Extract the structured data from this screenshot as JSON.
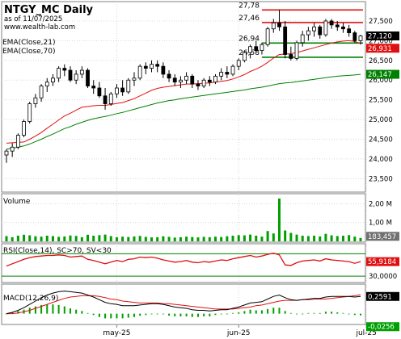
{
  "header": {
    "symbol": "NTGY_MC",
    "period": "Daily",
    "as_of": "as of 11/07/2025",
    "site": "www.wealth-lab.com"
  },
  "colors": {
    "up_candle": "#ffffff",
    "down_candle": "#000000",
    "ema21": "#e01010",
    "ema70": "#008000",
    "level_red": "#e01010",
    "level_green": "#008000",
    "volume": "#00a000",
    "rsi_line": "#e01010",
    "rsi_band": "#008000",
    "macd_line": "#000000",
    "signal_line": "#e01010",
    "hist": "#00a000",
    "price_tag": "#000000",
    "ema21_tag": "#e01010",
    "ema70_tag": "#008000"
  },
  "chart_data": [
    {
      "type": "candlestick",
      "title": "NTGY_MC Daily",
      "ylim": [
        23.2,
        27.95
      ],
      "yticks": [
        23.5,
        24.0,
        24.5,
        25.0,
        25.5,
        26.0,
        26.5,
        27.0,
        27.5
      ],
      "ytick_labels": [
        "23,500",
        "24,000",
        "24,500",
        "25,000",
        "25,500",
        "26,000",
        "26,500",
        "27,000",
        "27,500"
      ],
      "x_tick_labels": [
        {
          "index": 19,
          "label": "may-25"
        },
        {
          "index": 40,
          "label": "jun-25"
        },
        {
          "index": 62,
          "label": "jul-25"
        }
      ],
      "levels": [
        {
          "value": 27.78,
          "label": "27,78",
          "color": "red"
        },
        {
          "value": 27.46,
          "label": "27,46",
          "color": "red"
        },
        {
          "value": 26.94,
          "label": "26,94",
          "color": "green"
        },
        {
          "value": 26.58,
          "label": "26,58",
          "color": "green"
        }
      ],
      "indicators": [
        {
          "name": "EMA(Close,21)",
          "last": 26.931,
          "last_label": "26,931"
        },
        {
          "name": "EMA(Close,70)",
          "last": 26.147,
          "last_label": "26,147"
        }
      ],
      "last_close": 27.12,
      "last_close_label": "27,120",
      "ohlc": [
        [
          24.1,
          24.25,
          23.9,
          24.2
        ],
        [
          24.2,
          24.4,
          24.05,
          24.3
        ],
        [
          24.3,
          24.65,
          24.25,
          24.6
        ],
        [
          24.6,
          25.0,
          24.55,
          24.95
        ],
        [
          24.95,
          25.45,
          24.9,
          25.4
        ],
        [
          25.4,
          25.65,
          25.3,
          25.55
        ],
        [
          25.55,
          25.9,
          25.45,
          25.85
        ],
        [
          25.85,
          26.05,
          25.7,
          25.95
        ],
        [
          25.95,
          26.15,
          25.85,
          26.05
        ],
        [
          26.05,
          26.35,
          25.95,
          26.3
        ],
        [
          26.3,
          26.4,
          26.1,
          26.25
        ],
        [
          26.25,
          26.35,
          25.95,
          26.0
        ],
        [
          26.0,
          26.25,
          25.9,
          26.15
        ],
        [
          26.15,
          26.35,
          26.05,
          26.25
        ],
        [
          26.25,
          26.3,
          25.8,
          25.85
        ],
        [
          25.85,
          26.0,
          25.65,
          25.8
        ],
        [
          25.8,
          25.95,
          25.55,
          25.6
        ],
        [
          25.6,
          25.8,
          25.25,
          25.4
        ],
        [
          25.4,
          25.7,
          25.35,
          25.65
        ],
        [
          25.65,
          25.9,
          25.55,
          25.8
        ],
        [
          25.8,
          26.0,
          25.6,
          25.7
        ],
        [
          25.7,
          26.05,
          25.65,
          26.0
        ],
        [
          26.0,
          26.2,
          25.85,
          26.05
        ],
        [
          26.05,
          26.4,
          26.0,
          26.35
        ],
        [
          26.35,
          26.45,
          26.15,
          26.3
        ],
        [
          26.3,
          26.5,
          26.2,
          26.4
        ],
        [
          26.4,
          26.5,
          26.2,
          26.35
        ],
        [
          26.35,
          26.45,
          26.05,
          26.15
        ],
        [
          26.15,
          26.25,
          25.95,
          26.05
        ],
        [
          26.05,
          26.15,
          25.85,
          25.95
        ],
        [
          25.95,
          26.1,
          25.8,
          26.0
        ],
        [
          26.0,
          26.2,
          25.9,
          26.1
        ],
        [
          26.1,
          26.15,
          25.8,
          25.9
        ],
        [
          25.9,
          26.0,
          25.75,
          25.85
        ],
        [
          25.85,
          26.05,
          25.8,
          26.0
        ],
        [
          26.0,
          26.1,
          25.85,
          25.95
        ],
        [
          25.95,
          26.15,
          25.9,
          26.1
        ],
        [
          26.1,
          26.3,
          26.0,
          26.2
        ],
        [
          26.2,
          26.35,
          26.05,
          26.15
        ],
        [
          26.15,
          26.4,
          26.1,
          26.35
        ],
        [
          26.35,
          26.55,
          26.25,
          26.5
        ],
        [
          26.5,
          26.75,
          26.45,
          26.7
        ],
        [
          26.7,
          26.9,
          26.55,
          26.85
        ],
        [
          26.85,
          27.0,
          26.7,
          26.75
        ],
        [
          26.75,
          26.95,
          26.65,
          26.9
        ],
        [
          26.9,
          27.35,
          26.85,
          27.3
        ],
        [
          27.3,
          27.55,
          27.2,
          27.45
        ],
        [
          27.45,
          27.78,
          27.25,
          27.35
        ],
        [
          27.35,
          27.5,
          26.55,
          26.65
        ],
        [
          26.65,
          26.85,
          26.5,
          26.55
        ],
        [
          26.55,
          27.0,
          26.5,
          26.95
        ],
        [
          26.95,
          27.25,
          26.85,
          27.15
        ],
        [
          27.15,
          27.35,
          27.0,
          27.25
        ],
        [
          27.25,
          27.45,
          27.1,
          27.35
        ],
        [
          27.35,
          27.4,
          27.05,
          27.15
        ],
        [
          27.15,
          27.55,
          27.1,
          27.5
        ],
        [
          27.5,
          27.55,
          27.3,
          27.4
        ],
        [
          27.4,
          27.5,
          27.25,
          27.35
        ],
        [
          27.35,
          27.45,
          27.2,
          27.3
        ],
        [
          27.3,
          27.4,
          27.1,
          27.2
        ],
        [
          27.2,
          27.25,
          26.95,
          27.0
        ],
        [
          27.0,
          27.15,
          26.9,
          27.12
        ]
      ],
      "ema21": [
        24.4,
        24.41,
        24.42,
        24.43,
        24.5,
        24.58,
        24.67,
        24.78,
        24.88,
        24.99,
        25.09,
        25.16,
        25.24,
        25.31,
        25.33,
        25.35,
        25.36,
        25.36,
        25.38,
        25.41,
        25.43,
        25.48,
        25.53,
        25.6,
        25.67,
        25.74,
        25.79,
        25.82,
        25.84,
        25.86,
        25.88,
        25.9,
        25.9,
        25.91,
        25.92,
        25.93,
        25.95,
        25.97,
        25.99,
        26.03,
        26.08,
        26.14,
        26.22,
        26.28,
        26.35,
        26.45,
        26.56,
        26.65,
        26.66,
        26.67,
        26.7,
        26.74,
        26.78,
        26.82,
        26.86,
        26.9,
        26.94,
        26.97,
        26.99,
        27.0,
        26.98,
        26.931
      ],
      "ema70": [
        24.25,
        24.27,
        24.3,
        24.33,
        24.38,
        24.44,
        24.5,
        24.57,
        24.63,
        24.7,
        24.77,
        24.82,
        24.88,
        24.93,
        24.98,
        25.02,
        25.05,
        25.08,
        25.11,
        25.15,
        25.18,
        25.22,
        25.26,
        25.3,
        25.34,
        25.38,
        25.42,
        25.45,
        25.48,
        25.5,
        25.53,
        25.55,
        25.57,
        25.59,
        25.61,
        25.63,
        25.65,
        25.67,
        25.69,
        25.71,
        25.73,
        25.75,
        25.78,
        25.8,
        25.82,
        25.85,
        25.88,
        25.91,
        25.93,
        25.94,
        25.96,
        25.98,
        26.0,
        26.02,
        26.04,
        26.06,
        26.08,
        26.1,
        26.11,
        26.12,
        26.13,
        26.147
      ]
    },
    {
      "type": "bar",
      "title": "Volume",
      "ylim": [
        0,
        2.45
      ],
      "yticks": [
        1.0,
        2.0
      ],
      "ytick_labels": [
        "1,00 M",
        "2,00 M"
      ],
      "last_label": "183,457",
      "values_millions": [
        0.28,
        0.22,
        0.3,
        0.35,
        0.32,
        0.27,
        0.25,
        0.3,
        0.28,
        0.24,
        0.26,
        0.31,
        0.29,
        0.22,
        0.35,
        0.3,
        0.33,
        0.36,
        0.28,
        0.22,
        0.25,
        0.23,
        0.26,
        0.29,
        0.24,
        0.21,
        0.22,
        0.27,
        0.24,
        0.2,
        0.22,
        0.25,
        0.23,
        0.21,
        0.24,
        0.22,
        0.25,
        0.23,
        0.27,
        0.3,
        0.33,
        0.32,
        0.36,
        0.3,
        0.25,
        0.55,
        0.42,
        2.28,
        0.58,
        0.45,
        0.36,
        0.3,
        0.28,
        0.3,
        0.26,
        0.4,
        0.32,
        0.28,
        0.3,
        0.33,
        0.25,
        0.18
      ]
    },
    {
      "type": "line",
      "title": "RSI(Close,14), SC>70, SV<30",
      "ylim": [
        20,
        85
      ],
      "yticks": [
        30
      ],
      "ytick_labels": [
        "30,0000"
      ],
      "bands": [
        30,
        70
      ],
      "last": 55.9184,
      "last_label": "55,9184",
      "values": [
        48,
        52,
        56,
        60,
        63,
        65,
        66,
        67,
        67,
        68,
        67,
        64,
        65,
        66,
        60,
        58,
        55,
        52,
        55,
        58,
        56,
        60,
        61,
        64,
        63,
        64,
        62,
        59,
        57,
        55,
        56,
        58,
        55,
        54,
        56,
        55,
        57,
        59,
        58,
        61,
        63,
        65,
        67,
        64,
        66,
        69,
        71,
        68,
        50,
        49,
        54,
        57,
        58,
        59,
        57,
        61,
        59,
        58,
        57,
        56,
        53,
        55.9184
      ]
    },
    {
      "type": "line",
      "title": "MACD(12,26,9)",
      "ylim": [
        -0.15,
        0.42
      ],
      "macd_last": 0.2591,
      "macd_last_label": "0,2591",
      "hist_last": -0.0256,
      "hist_last_label": "-0,0256",
      "macd": [
        0.0,
        0.02,
        0.05,
        0.09,
        0.14,
        0.19,
        0.24,
        0.28,
        0.31,
        0.33,
        0.34,
        0.33,
        0.32,
        0.31,
        0.28,
        0.25,
        0.21,
        0.17,
        0.15,
        0.14,
        0.12,
        0.12,
        0.12,
        0.13,
        0.14,
        0.15,
        0.15,
        0.14,
        0.12,
        0.1,
        0.09,
        0.08,
        0.06,
        0.05,
        0.05,
        0.04,
        0.05,
        0.06,
        0.06,
        0.08,
        0.1,
        0.13,
        0.16,
        0.17,
        0.18,
        0.22,
        0.26,
        0.28,
        0.24,
        0.21,
        0.2,
        0.21,
        0.22,
        0.23,
        0.23,
        0.25,
        0.26,
        0.26,
        0.26,
        0.26,
        0.25,
        0.2591
      ],
      "signal": [
        0.0,
        0.0,
        0.01,
        0.03,
        0.05,
        0.08,
        0.11,
        0.14,
        0.17,
        0.2,
        0.23,
        0.25,
        0.26,
        0.27,
        0.27,
        0.27,
        0.26,
        0.24,
        0.22,
        0.21,
        0.19,
        0.18,
        0.17,
        0.16,
        0.16,
        0.16,
        0.16,
        0.15,
        0.15,
        0.14,
        0.13,
        0.12,
        0.11,
        0.1,
        0.09,
        0.08,
        0.07,
        0.07,
        0.07,
        0.07,
        0.08,
        0.09,
        0.1,
        0.12,
        0.13,
        0.15,
        0.17,
        0.19,
        0.2,
        0.2,
        0.2,
        0.21,
        0.21,
        0.22,
        0.22,
        0.22,
        0.23,
        0.24,
        0.25,
        0.26,
        0.27,
        0.285
      ]
    }
  ]
}
